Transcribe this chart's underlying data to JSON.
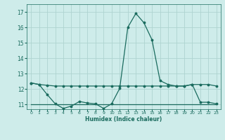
{
  "xlabel": "Humidex (Indice chaleur)",
  "xlim": [
    -0.5,
    23.5
  ],
  "ylim": [
    10.7,
    17.5
  ],
  "yticks": [
    11,
    12,
    13,
    14,
    15,
    16,
    17
  ],
  "xticks": [
    0,
    1,
    2,
    3,
    4,
    5,
    6,
    7,
    8,
    9,
    10,
    11,
    12,
    13,
    14,
    15,
    16,
    17,
    18,
    19,
    20,
    21,
    22,
    23
  ],
  "background_color": "#ceecea",
  "grid_color": "#aed4d0",
  "line_color": "#1a6b5e",
  "line1_x": [
    0,
    1,
    2,
    3,
    4,
    5,
    6,
    7,
    8,
    9,
    10,
    11,
    12,
    13,
    14,
    15,
    16,
    17,
    18,
    19,
    20,
    21,
    22,
    23
  ],
  "line1_y": [
    12.4,
    12.3,
    12.25,
    12.2,
    12.2,
    12.2,
    12.2,
    12.2,
    12.2,
    12.2,
    12.2,
    12.2,
    12.2,
    12.2,
    12.2,
    12.2,
    12.2,
    12.2,
    12.2,
    12.2,
    12.3,
    12.3,
    12.3,
    12.2
  ],
  "line2_x": [
    0,
    1,
    2,
    3,
    4,
    5,
    6,
    7,
    8,
    9,
    10,
    11,
    12,
    13,
    14,
    15,
    16,
    17,
    18,
    19,
    20,
    21,
    22,
    23
  ],
  "line2_y": [
    12.4,
    12.3,
    11.65,
    11.05,
    10.75,
    10.9,
    11.2,
    11.1,
    11.05,
    10.75,
    11.05,
    12.05,
    16.0,
    16.9,
    16.3,
    15.2,
    12.55,
    12.3,
    12.2,
    12.2,
    12.3,
    11.15,
    11.15,
    11.05
  ],
  "line3_x": [
    0,
    1,
    2,
    3,
    4,
    5,
    6,
    7,
    8,
    9,
    10,
    11,
    12,
    13,
    14,
    15,
    16,
    17,
    18,
    19,
    20,
    21,
    22,
    23
  ],
  "line3_y": [
    11.0,
    11.0,
    11.0,
    11.0,
    11.0,
    11.0,
    11.0,
    11.0,
    11.0,
    11.0,
    11.0,
    11.0,
    11.0,
    11.0,
    11.0,
    11.0,
    11.0,
    11.0,
    11.0,
    11.0,
    11.0,
    11.0,
    11.0,
    11.0
  ]
}
